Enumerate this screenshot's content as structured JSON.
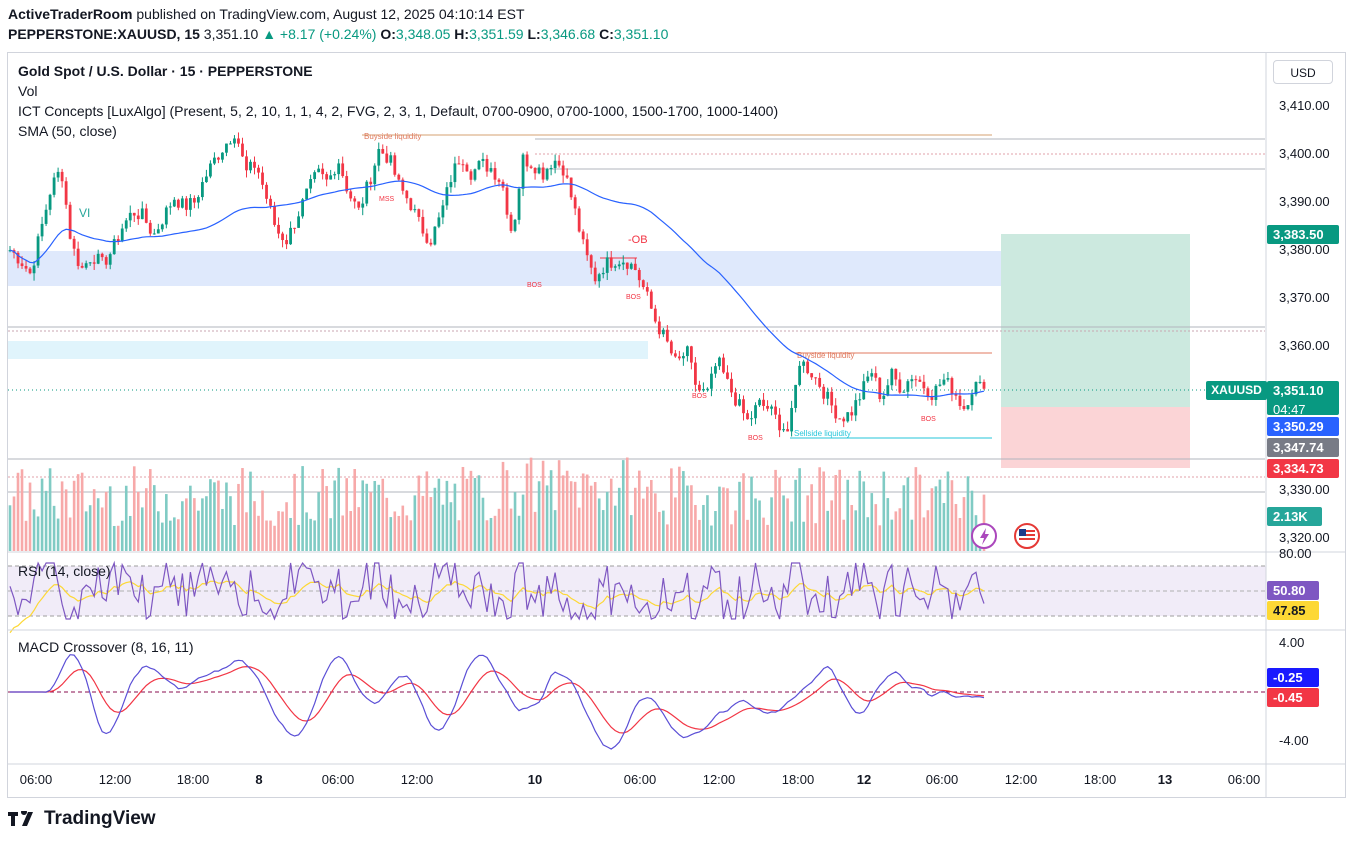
{
  "header": {
    "publisher": "ActiveTraderRoom",
    "published_text": "published on TradingView.com, August 12, 2025 04:10:14 EST",
    "symbol_line": "PEPPERSTONE:XAUUSD, 15",
    "last": "3,351.10",
    "change": "▲ +8.17 (+0.24%)",
    "o_label": "O:",
    "o": "3,348.05",
    "h_label": "H:",
    "h": "3,351.59",
    "l_label": "L:",
    "l": "3,346.68",
    "c_label": "C:",
    "c": "3,351.10"
  },
  "legend": {
    "title": "Gold Spot / U.S. Dollar · 15 · PEPPERSTONE",
    "vol": "Vol",
    "ict": "ICT Concepts [LuxAlgo] (Present, 5, 2, 10, 1, 1, 4, 2, FVG, 2, 3, 1, Default, 0700-0900, 0700-1000, 1500-1700, 1000-1400)",
    "sma": "SMA (50, close)",
    "rsi": "RSI (14, close)",
    "macd": "MACD Crossover (8, 16, 11)"
  },
  "price_scale": {
    "currency": "USD",
    "ticks": [
      "3,410.00",
      "3,400.00",
      "3,390.00",
      "3,380.00",
      "3,370.00",
      "3,360.00",
      "3,330.00",
      "3,320.00"
    ],
    "rsi_ticks": [
      "80.00"
    ],
    "macd_ticks": [
      "4.00",
      "-4.00"
    ]
  },
  "x_axis": {
    "ticks": [
      "06:00",
      "12:00",
      "18:00",
      "8",
      "06:00",
      "12:00",
      "10",
      "06:00",
      "12:00",
      "18:00",
      "12",
      "06:00",
      "12:00",
      "18:00",
      "13",
      "06:00"
    ]
  },
  "tags": {
    "target": "3,383.50",
    "symbol": "XAUUSD",
    "price": "3,351.10",
    "countdown": "04:47",
    "sma": "3,350.29",
    "entry": "3,347.74",
    "stop": "3,334.73",
    "volume": "2.13K",
    "rsi": "50.80",
    "rsi_ma": "47.85",
    "macd": "-0.25",
    "signal": "-0.45"
  },
  "annotations": {
    "vi": "VI",
    "ob": "-OB",
    "bsl1": "Buyside liquidity",
    "bsl2": "Buyside liquidity",
    "ssl": "Sellside liquidity",
    "mss": "MSS",
    "bos": "BOS"
  },
  "colors": {
    "up": "#089981",
    "down": "#f23645",
    "sma": "#2962ff",
    "rsi": "#7e57c2",
    "rsi_ma": "#fdd835",
    "macd": "#5b4fd6",
    "signal": "#f23645",
    "target_zone": "#cce9df",
    "stop_zone": "#fbd4d6"
  },
  "brand": "TradingView",
  "chart_data": {
    "type": "candlestick",
    "symbol": "XAUUSD",
    "interval": "15",
    "ylim": [
      3318,
      3416
    ],
    "trade": {
      "entry": 3347.74,
      "target": 3383.5,
      "stop": 3334.73
    },
    "last_price": 3351.1,
    "sma50_last": 3350.29,
    "rsi_last": 50.8,
    "rsi_ma_last": 47.85,
    "macd_last": -0.25,
    "signal_last": -0.45,
    "volume_last": "2.13K",
    "price_path": [
      3380,
      3378,
      3375,
      3384,
      3393,
      3397,
      3381,
      3376,
      3379,
      3377,
      3380,
      3385,
      3388,
      3387,
      3383,
      3387,
      3391,
      3389,
      3390,
      3395,
      3399,
      3402,
      3405,
      3396,
      3398,
      3391,
      3384,
      3382,
      3387,
      3392,
      3396,
      3394,
      3399,
      3392,
      3388,
      3394,
      3401,
      3399,
      3393,
      3390,
      3385,
      3382,
      3387,
      3395,
      3400,
      3396,
      3398,
      3397,
      3394,
      3383,
      3399,
      3398,
      3396,
      3399,
      3397,
      3389,
      3380,
      3374,
      3377,
      3378,
      3378,
      3376,
      3371,
      3365,
      3361,
      3356,
      3359,
      3351,
      3350,
      3357,
      3352,
      3348,
      3344,
      3348,
      3347,
      3344,
      3342,
      3357,
      3355,
      3352,
      3348,
      3345,
      3346,
      3350,
      3355,
      3349,
      3354,
      3351,
      3354,
      3352,
      3350,
      3353,
      3351,
      3347,
      3352,
      3351
    ]
  }
}
